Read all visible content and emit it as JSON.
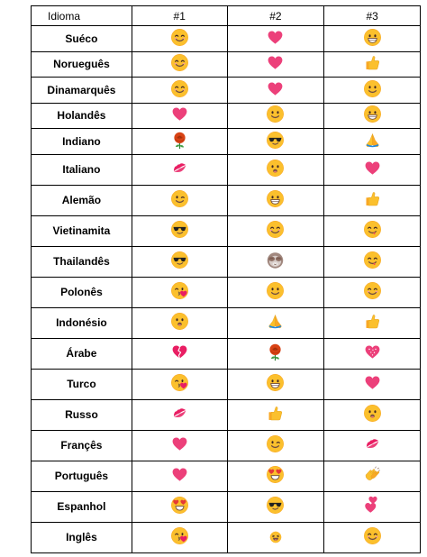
{
  "header": {
    "lang": "Idioma",
    "c1": "#1",
    "c2": "#2",
    "c3": "#3"
  },
  "rows": [
    {
      "lang": "Suéco",
      "e": [
        "smiling-eyes",
        "heart",
        "grin"
      ]
    },
    {
      "lang": "Norueguês",
      "e": [
        "smiling-eyes",
        "heart",
        "thumbs-up"
      ]
    },
    {
      "lang": "Dinamarquês",
      "e": [
        "smiling-eyes",
        "heart",
        "smile"
      ]
    },
    {
      "lang": "Holandês",
      "e": [
        "heart",
        "smile",
        "grin"
      ]
    },
    {
      "lang": "Indiano",
      "e": [
        "rose",
        "sunglasses",
        "folded-hands"
      ]
    },
    {
      "lang": "Italiano",
      "e": [
        "kiss-lips",
        "open-mouth",
        "heart"
      ]
    },
    {
      "lang": "Alemão",
      "e": [
        "wink",
        "grin",
        "thumbs-up"
      ]
    },
    {
      "lang": "Vietinamita",
      "e": [
        "sunglasses",
        "smiling-eyes",
        "yum"
      ]
    },
    {
      "lang": "Thailandês",
      "e": [
        "sunglasses",
        "see-no-evil",
        "yum"
      ]
    },
    {
      "lang": "Polonês",
      "e": [
        "kissing-heart",
        "smile",
        "smiling-eyes"
      ]
    },
    {
      "lang": "Indonésio",
      "e": [
        "open-mouth",
        "folded-hands",
        "thumbs-up"
      ]
    },
    {
      "lang": "Árabe",
      "e": [
        "broken-heart",
        "rose",
        "sparkling-heart"
      ]
    },
    {
      "lang": "Turco",
      "e": [
        "kissing-heart",
        "grin",
        "heart"
      ]
    },
    {
      "lang": "Russo",
      "e": [
        "kiss-lips",
        "thumbs-up",
        "open-mouth"
      ]
    },
    {
      "lang": "Françês",
      "e": [
        "heart",
        "wink",
        "kiss-lips"
      ]
    },
    {
      "lang": "Português",
      "e": [
        "heart",
        "heart-eyes",
        "clapping"
      ]
    },
    {
      "lang": "Espanhol",
      "e": [
        "heart-eyes",
        "sunglasses",
        "two-hearts"
      ]
    },
    {
      "lang": "Inglês",
      "e": [
        "kissing-heart",
        "laughing",
        "smiling-eyes"
      ]
    }
  ]
}
